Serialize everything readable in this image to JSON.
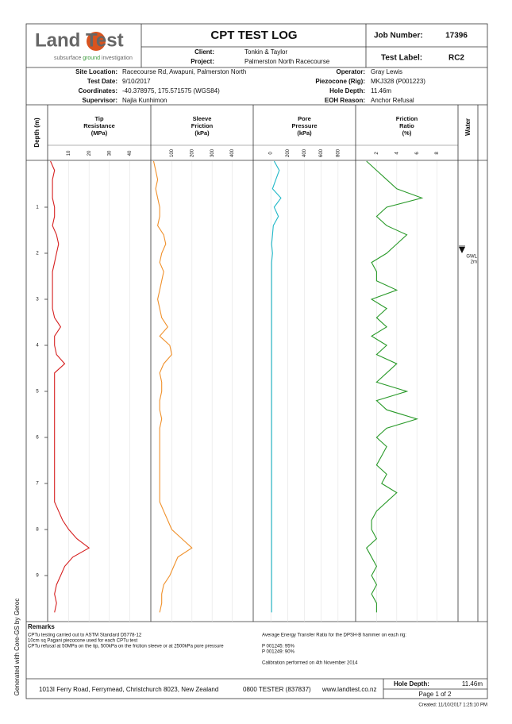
{
  "logo": {
    "part1": "Land",
    "part2": "Test",
    "tagline_1": "subsurface ",
    "tagline_2": "ground",
    "tagline_3": " investigation"
  },
  "header": {
    "title": "CPT TEST LOG",
    "client_label": "Client:",
    "client": "Tonkin & Taylor",
    "project_label": "Project:",
    "project": "Palmerston North Racecourse",
    "job_number_label": "Job Number:",
    "job_number": "17396",
    "test_label_label": "Test Label:",
    "test_label": "RC2"
  },
  "info": {
    "left": [
      [
        "Site Location:",
        "Racecourse Rd, Awapuni, Palmerston North"
      ],
      [
        "Test Date:",
        "9/10/2017"
      ],
      [
        "Coordinates:",
        "-40.378975, 175.571575 (WGS84)"
      ],
      [
        "Supervisor:",
        "Najla Kunhimon"
      ]
    ],
    "right": [
      [
        "Operator:",
        "Gray Lewis"
      ],
      [
        "Piezocone (Rig):",
        "MKJ328 (P001223)"
      ],
      [
        "Hole Depth:",
        "11.46m"
      ],
      [
        "EOH Reason:",
        "Anchor Refusal"
      ]
    ]
  },
  "depth": {
    "label": "Depth (m)",
    "ylim": [
      0,
      10
    ],
    "yticks": [
      1,
      2,
      3,
      4,
      5,
      6,
      7,
      8,
      9
    ],
    "values": [
      0,
      0.2,
      0.4,
      0.6,
      0.8,
      1,
      1.2,
      1.4,
      1.6,
      1.8,
      2,
      2.2,
      2.4,
      2.6,
      2.8,
      3,
      3.2,
      3.4,
      3.6,
      3.8,
      4,
      4.2,
      4.4,
      4.6,
      4.8,
      5,
      5.2,
      5.4,
      5.6,
      5.8,
      6,
      6.2,
      6.4,
      6.6,
      6.8,
      7,
      7.2,
      7.4,
      7.6,
      7.8,
      8,
      8.2,
      8.4,
      8.6,
      8.8,
      9,
      9.2,
      9.4,
      9.6,
      9.8
    ]
  },
  "chart_data": [
    {
      "type": "line",
      "title_lines": [
        "Tip",
        "Resistance",
        "(MPa)"
      ],
      "color": "#d62020",
      "xlim": [
        0,
        50
      ],
      "xticks": [
        10,
        20,
        30,
        40
      ],
      "values": [
        1,
        3,
        2,
        2,
        2,
        3,
        3,
        2,
        4,
        5,
        4,
        3,
        2,
        2,
        2,
        2,
        2,
        3,
        6,
        3,
        3,
        4,
        8,
        3,
        3,
        3,
        3,
        3,
        3,
        3,
        3,
        3,
        3,
        3,
        3,
        3,
        3,
        3,
        5,
        7,
        10,
        14,
        20,
        12,
        8,
        6,
        4,
        3,
        4,
        3
      ]
    },
    {
      "type": "line",
      "title_lines": [
        "Sleeve",
        "Friction",
        "(kPa)"
      ],
      "color": "#f0902a",
      "xlim": [
        0,
        500
      ],
      "xticks": [
        100,
        200,
        300,
        400
      ],
      "values": [
        10,
        20,
        30,
        20,
        30,
        40,
        40,
        30,
        60,
        70,
        50,
        40,
        60,
        50,
        40,
        30,
        40,
        50,
        80,
        40,
        90,
        100,
        60,
        40,
        50,
        50,
        40,
        40,
        50,
        40,
        40,
        40,
        40,
        40,
        40,
        40,
        40,
        40,
        60,
        80,
        100,
        150,
        200,
        130,
        110,
        90,
        60,
        50,
        50,
        40
      ]
    },
    {
      "type": "line",
      "title_lines": [
        "Pore",
        "Pressure",
        "(kPa)"
      ],
      "color": "#20b8c8",
      "xlim": [
        -200,
        1000
      ],
      "xticks": [
        0,
        200,
        400,
        600,
        800
      ],
      "values": [
        40,
        100,
        60,
        20,
        120,
        40,
        90,
        30,
        20,
        10,
        20,
        10,
        10,
        10,
        10,
        10,
        10,
        10,
        10,
        10,
        10,
        10,
        10,
        10,
        10,
        10,
        10,
        10,
        10,
        10,
        10,
        10,
        10,
        10,
        10,
        10,
        10,
        10,
        10,
        10,
        10,
        10,
        10,
        10,
        10,
        10,
        10,
        10,
        10,
        10
      ]
    },
    {
      "type": "line",
      "title_lines": [
        "Friction",
        "Ratio",
        "(%)"
      ],
      "color": "#2a9a2a",
      "xlim": [
        0,
        10
      ],
      "xticks": [
        2,
        4,
        6,
        8
      ],
      "values": [
        1,
        2,
        3,
        4,
        6.5,
        3,
        2,
        3,
        5,
        4,
        3,
        1.5,
        2,
        2,
        4,
        1.5,
        3,
        2,
        3,
        1.5,
        3,
        2,
        4,
        3,
        2,
        5,
        2,
        3,
        6,
        3,
        2,
        3,
        2.5,
        2,
        3,
        2.5,
        4,
        3,
        2,
        1.5,
        1.5,
        2,
        1,
        1.5,
        2,
        1.5,
        2,
        1.5,
        2,
        2
      ]
    }
  ],
  "water": {
    "title": "Water",
    "gwl_label": "GWL",
    "gwl_depth_label": "2m",
    "gwl_depth": 2
  },
  "remarks": {
    "title": "Remarks",
    "left": [
      "CPTu testing carried out to ASTM Standard D5778-12",
      "10cm sq Pagani piezocone used for each CPTu test",
      "CPTu refusal at 50MPa on the tip, 500kPa on the friction sleeve or at 2500kPa pore pressure"
    ],
    "right": [
      "Average Energy Transfer Ratio for the DPSH-B hammer on each rig:",
      "P 001245: 95%",
      "P 001249: 90%",
      "Calibration performed on 4th November 2014"
    ]
  },
  "footer": {
    "address": "1013I Ferry Road, Ferrymead, Christchurch 8023, New Zealand",
    "phone": "0800 TESTER (837837)",
    "website": "www.landtest.co.nz",
    "hole_depth_label": "Hole Depth:",
    "hole_depth": "11.46m",
    "page": "Page 1 of 2",
    "created": "Created: 11/10/2017 1:25:10 PM"
  },
  "side_note": "Generated with Core-GS by Geroc"
}
